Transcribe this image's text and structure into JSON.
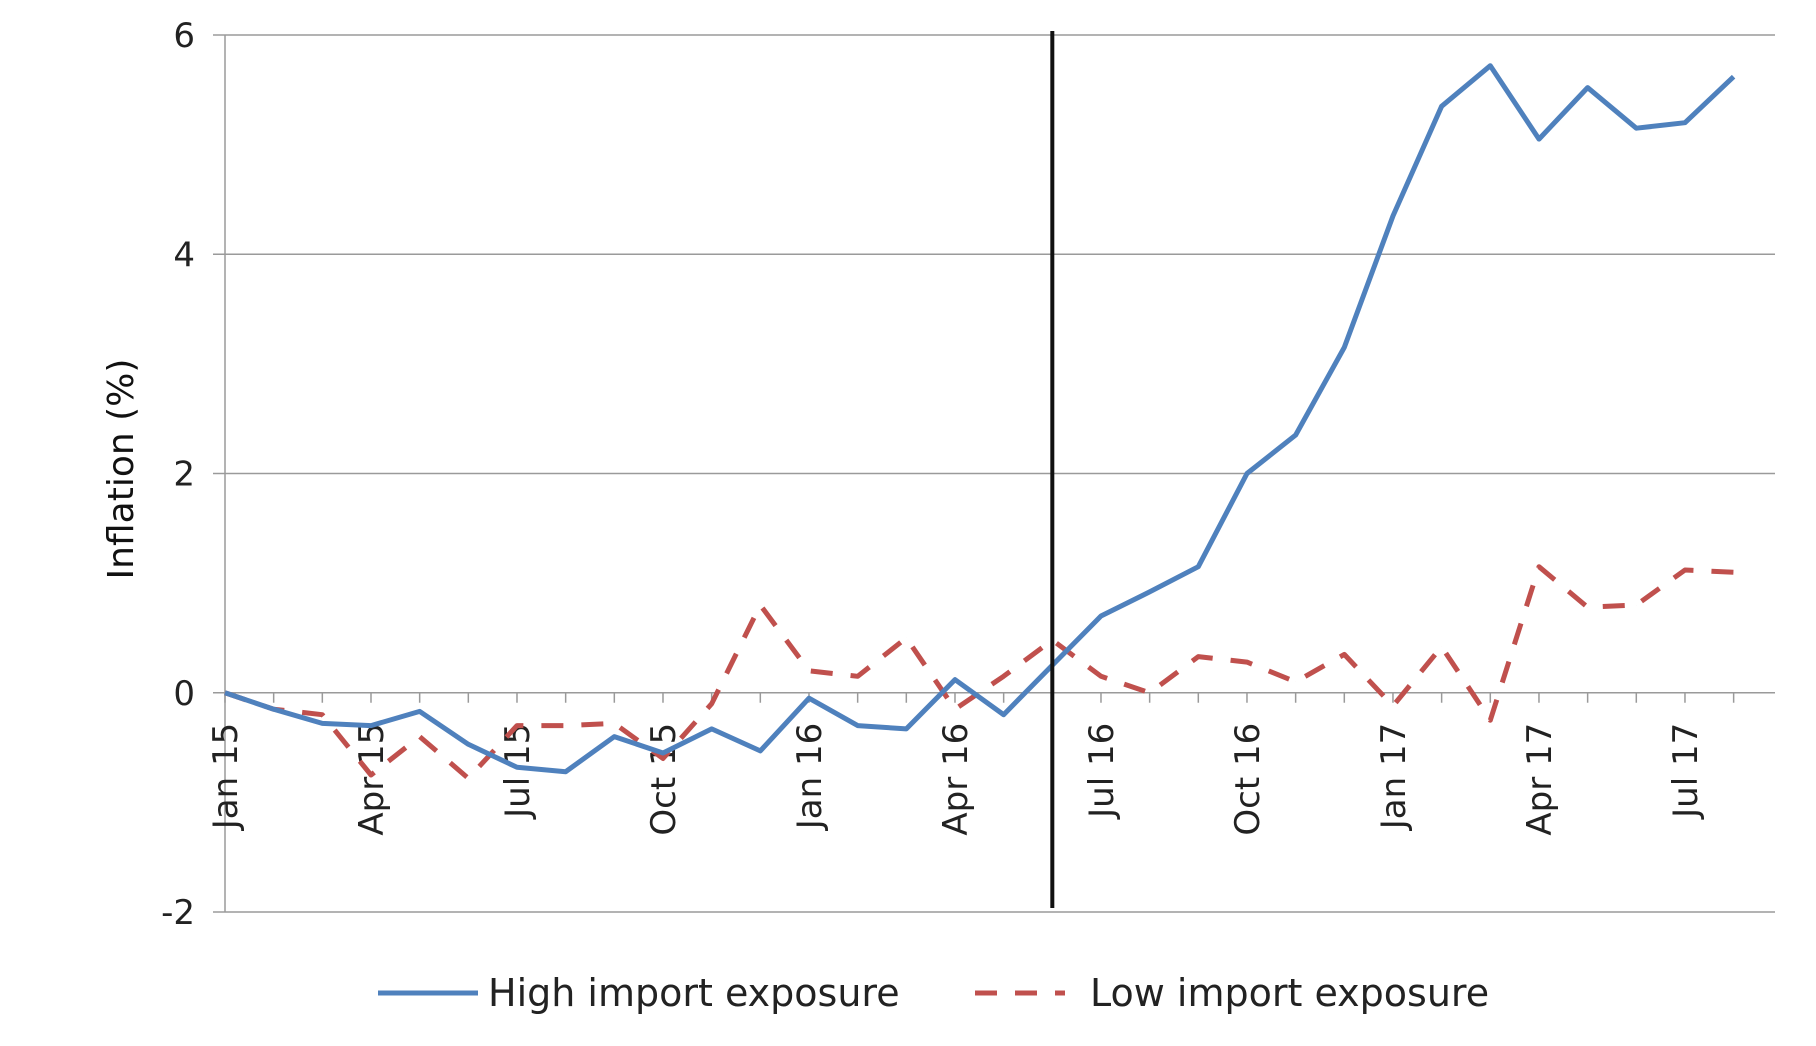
{
  "chart_data": {
    "type": "line",
    "title": "",
    "xlabel": "",
    "ylabel": "Inflation (%)",
    "ylim": [
      -2,
      6
    ],
    "yticks": [
      6,
      4,
      2,
      0,
      -2
    ],
    "grid": true,
    "legend_position": "bottom",
    "x_tick_labels": [
      "Jan 15",
      "Apr 15",
      "Jul 15",
      "Oct 15",
      "Jan 16",
      "Apr 16",
      "Jul 16",
      "Oct 16",
      "Jan 17",
      "Apr 17",
      "Jul 17"
    ],
    "x": [
      "2015-01",
      "2015-02",
      "2015-03",
      "2015-04",
      "2015-05",
      "2015-06",
      "2015-07",
      "2015-08",
      "2015-09",
      "2015-10",
      "2015-11",
      "2015-12",
      "2016-01",
      "2016-02",
      "2016-03",
      "2016-04",
      "2016-05",
      "2016-06",
      "2016-07",
      "2016-08",
      "2016-09",
      "2016-10",
      "2016-11",
      "2016-12",
      "2017-01",
      "2017-02",
      "2017-03",
      "2017-04",
      "2017-05",
      "2017-06",
      "2017-07",
      "2017-08"
    ],
    "vertical_marker": "2016-06",
    "series": [
      {
        "name": "High import exposure",
        "color": "#4f81bd",
        "style": "solid",
        "values": [
          0.0,
          -0.15,
          -0.28,
          -0.3,
          -0.17,
          -0.47,
          -0.68,
          -0.72,
          -0.4,
          -0.55,
          -0.33,
          -0.53,
          -0.05,
          -0.3,
          -0.33,
          0.12,
          -0.2,
          0.25,
          0.7,
          0.92,
          1.15,
          2.0,
          2.35,
          3.15,
          4.35,
          5.35,
          5.72,
          5.05,
          5.52,
          5.15,
          5.2,
          5.62
        ]
      },
      {
        "name": "Low import exposure",
        "color": "#c0504d",
        "style": "dashed",
        "values": [
          0.0,
          -0.15,
          -0.2,
          -0.75,
          -0.4,
          -0.78,
          -0.3,
          -0.3,
          -0.28,
          -0.6,
          -0.1,
          0.8,
          0.2,
          0.15,
          0.5,
          -0.15,
          0.15,
          0.48,
          0.15,
          0.0,
          0.33,
          0.28,
          0.1,
          0.35,
          -0.12,
          0.42,
          -0.25,
          1.15,
          0.78,
          0.8,
          1.12,
          1.1
        ]
      }
    ]
  }
}
